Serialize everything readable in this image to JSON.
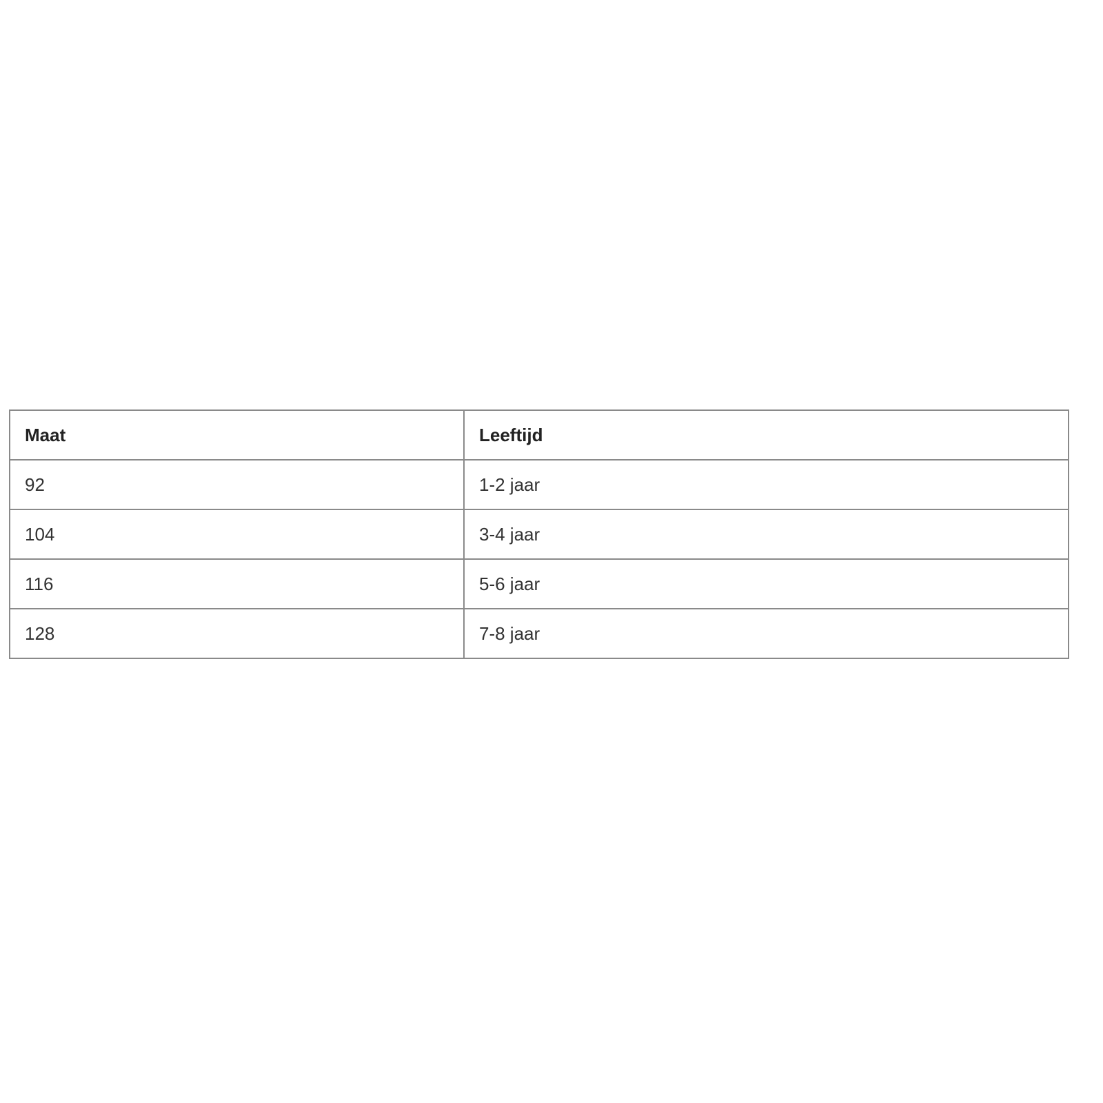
{
  "table": {
    "headers": [
      "Maat",
      "Leeftijd"
    ],
    "rows": [
      [
        "92",
        "1-2 jaar"
      ],
      [
        "104",
        "3-4 jaar"
      ],
      [
        "116",
        "5-6 jaar"
      ],
      [
        "128",
        "7-8 jaar"
      ]
    ]
  }
}
